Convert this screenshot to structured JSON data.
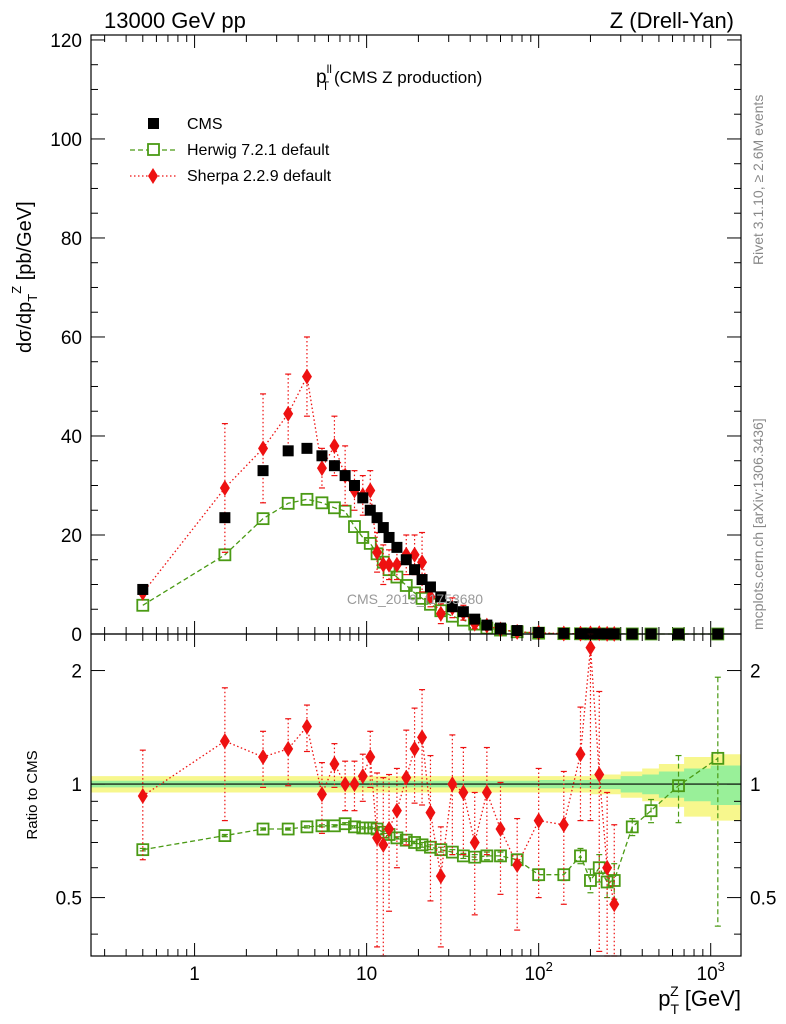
{
  "header": {
    "left": "13000 GeV pp",
    "right": "Z (Drell-Yan)"
  },
  "side_labels": {
    "rivet": "Rivet 3.1.10, ≥ 2.6M events",
    "mcplots": "mcplots.cern.ch [arXiv:1306.3436]"
  },
  "watermark": "CMS_2019_I1753680",
  "chart_data": [
    {
      "type": "scatter",
      "panel": "main",
      "title": "p_T^ll (CMS Z production)",
      "title_main": "p",
      "title_sup": "ll",
      "title_sub": "T",
      "title_rest": " (CMS Z production)",
      "ylabel": "dσ/dp_T^Z [pb/GeV]",
      "xscale": "log",
      "xlim": [
        0.25,
        1500
      ],
      "ylim": [
        0,
        121
      ],
      "yticks": [
        0,
        20,
        40,
        60,
        80,
        100,
        120
      ],
      "legend_placement": "top-left",
      "series": [
        {
          "name": "CMS",
          "color": "#000000",
          "marker": "filled-square",
          "x": [
            0.5,
            1.5,
            2.5,
            3.5,
            4.5,
            5.5,
            6.5,
            7.5,
            8.5,
            9.5,
            10.5,
            11.5,
            12.5,
            13.5,
            15,
            17,
            19,
            21,
            23.5,
            27,
            31.5,
            36.5,
            42.5,
            50,
            60,
            75,
            100,
            140,
            175,
            200,
            225,
            250,
            275,
            350,
            450,
            650,
            1100
          ],
          "y": [
            9,
            23.5,
            33,
            37,
            37.5,
            36,
            34,
            32,
            30,
            27.5,
            25,
            23.5,
            21.5,
            19.5,
            17.5,
            15,
            13,
            11,
            9.5,
            7.5,
            5.5,
            4.5,
            3,
            1.8,
            1.2,
            0.7,
            0.3,
            0.12,
            0.07,
            0.05,
            0.04,
            0.03,
            0.025,
            0.015,
            0.008,
            0.003,
            0.0005
          ]
        },
        {
          "name": "Herwig 7.2.1 default",
          "color": "#4a9a14",
          "marker": "open-square",
          "line": "dashed",
          "x": [
            0.5,
            1.5,
            2.5,
            3.5,
            4.5,
            5.5,
            6.5,
            7.5,
            8.5,
            9.5,
            10.5,
            11.5,
            12.5,
            13.5,
            15,
            17,
            19,
            21,
            23.5,
            27,
            31.5,
            36.5,
            42.5,
            50,
            60,
            75,
            100,
            140,
            175,
            200,
            225,
            250,
            275,
            350,
            450,
            650,
            1100
          ],
          "y": [
            5.8,
            16,
            23.3,
            26.4,
            27.2,
            26.5,
            25.5,
            24.8,
            21.7,
            19.5,
            18.3,
            16.2,
            14.5,
            13,
            11.5,
            9.8,
            8.3,
            7.2,
            6,
            4.7,
            3.6,
            2.8,
            2,
            1.2,
            0.8,
            0.45,
            0.17,
            0.07,
            0.045,
            0.03,
            0.025,
            0.018,
            0.014,
            0.011,
            0.006,
            0.003,
            0.0006
          ]
        },
        {
          "name": "Sherpa 2.2.9 default",
          "color": "#ee1111",
          "marker": "filled-diamond",
          "line": "dotted",
          "x": [
            0.5,
            1.5,
            2.5,
            3.5,
            4.5,
            5.5,
            6.5,
            7.5,
            8.5,
            9.5,
            10.5,
            11.5,
            12.5,
            13.5,
            15,
            17,
            19,
            21,
            23.5,
            27,
            31.5,
            36.5,
            42.5,
            50,
            60,
            75,
            100,
            140,
            175,
            200,
            225,
            250,
            275
          ],
          "y": [
            8.3,
            29.5,
            37.5,
            44.5,
            52,
            33.5,
            38,
            32,
            29,
            28,
            29,
            16.5,
            14,
            14,
            14,
            16,
            16,
            14.5,
            7.5,
            4.1,
            5.3,
            4.3,
            2.1,
            1.7,
            0.9,
            0.42,
            0.24,
            0.09,
            0.08,
            0.12,
            0.14,
            0.03,
            0.03
          ],
          "yerr": [
            0.5,
            13,
            11,
            8,
            8,
            4,
            6,
            6,
            4,
            4,
            4,
            4,
            4,
            3,
            3,
            4,
            4,
            6,
            2,
            2,
            2,
            1.5,
            1,
            0.8,
            0.5,
            0.3,
            0.2,
            0.1,
            0.1,
            0.2,
            0.2,
            0.05,
            0.05
          ]
        }
      ]
    },
    {
      "type": "scatter",
      "panel": "ratio",
      "ylabel": "Ratio to CMS",
      "xlabel": "p_T^Z [GeV]",
      "xlabel_main": "p",
      "xlabel_sub": "T",
      "xlabel_sup": "Z",
      "xlabel_rest": " [GeV]",
      "xscale": "log",
      "yscale": "log",
      "xlim": [
        0.25,
        1500
      ],
      "ylim": [
        0.35,
        2.5
      ],
      "yticks": [
        0.5,
        1,
        2
      ],
      "xtick_labels": [
        "1",
        "10",
        "10²",
        "10³"
      ],
      "reference_line": 1,
      "band_colors": {
        "inner": "#99f099",
        "outer": "#f7f78d"
      },
      "band": {
        "x_edges": [
          0.25,
          1,
          10,
          100,
          200,
          300,
          400,
          500,
          700,
          1000,
          1500
        ],
        "inner_half": [
          0.02,
          0.02,
          0.02,
          0.025,
          0.03,
          0.05,
          0.06,
          0.08,
          0.1,
          0.12
        ],
        "outer_half": [
          0.05,
          0.05,
          0.05,
          0.05,
          0.06,
          0.08,
          0.1,
          0.13,
          0.18,
          0.2
        ]
      },
      "series": [
        {
          "name": "Herwig 7.2.1 default",
          "color": "#4a9a14",
          "marker": "open-square",
          "line": "dashed",
          "x": [
            0.5,
            1.5,
            2.5,
            3.5,
            4.5,
            5.5,
            6.5,
            7.5,
            8.5,
            9.5,
            10.5,
            11.5,
            12.5,
            13.5,
            15,
            17,
            19,
            21,
            23.5,
            27,
            31.5,
            36.5,
            42.5,
            50,
            60,
            75,
            100,
            140,
            175,
            200,
            225,
            250,
            275,
            350,
            450,
            650,
            1100
          ],
          "y": [
            0.67,
            0.73,
            0.76,
            0.76,
            0.77,
            0.775,
            0.775,
            0.785,
            0.77,
            0.765,
            0.765,
            0.76,
            0.745,
            0.735,
            0.72,
            0.71,
            0.7,
            0.69,
            0.68,
            0.67,
            0.66,
            0.645,
            0.64,
            0.645,
            0.645,
            0.63,
            0.575,
            0.575,
            0.645,
            0.555,
            0.6,
            0.55,
            0.555,
            0.77,
            0.85,
            0.99,
            1.17
          ],
          "yerr": [
            0.005,
            0.005,
            0.005,
            0.005,
            0.005,
            0.005,
            0.005,
            0.005,
            0.005,
            0.005,
            0.005,
            0.005,
            0.005,
            0.005,
            0.005,
            0.005,
            0.005,
            0.01,
            0.01,
            0.01,
            0.01,
            0.01,
            0.01,
            0.015,
            0.015,
            0.02,
            0.02,
            0.02,
            0.03,
            0.04,
            0.05,
            0.05,
            0.06,
            0.04,
            0.06,
            0.2,
            0.75
          ]
        },
        {
          "name": "Sherpa 2.2.9 default",
          "color": "#ee1111",
          "marker": "filled-diamond",
          "line": "dotted",
          "x": [
            0.5,
            1.5,
            2.5,
            3.5,
            4.5,
            5.5,
            6.5,
            7.5,
            8.5,
            9.5,
            10.5,
            11.5,
            12.5,
            13.5,
            15,
            17,
            19,
            21,
            23.5,
            27,
            31.5,
            36.5,
            42.5,
            50,
            60,
            75,
            100,
            140,
            175,
            200,
            225,
            250,
            275
          ],
          "y": [
            0.93,
            1.3,
            1.18,
            1.24,
            1.42,
            0.94,
            1.13,
            1.0,
            1.0,
            1.05,
            1.18,
            0.72,
            0.69,
            0.76,
            0.85,
            1.04,
            1.24,
            1.33,
            0.84,
            0.57,
            1.0,
            0.95,
            0.7,
            0.95,
            0.76,
            0.61,
            0.8,
            0.78,
            1.2,
            2.3,
            1.06,
            0.6,
            0.48
          ],
          "yerr": [
            0.3,
            0.5,
            0.2,
            0.25,
            0.2,
            0.2,
            0.15,
            0.15,
            0.15,
            0.15,
            0.2,
            0.35,
            0.35,
            0.3,
            0.25,
            0.35,
            0.35,
            0.45,
            0.35,
            0.2,
            0.35,
            0.3,
            0.25,
            0.3,
            0.25,
            0.2,
            0.3,
            0.3,
            0.4,
            1.5,
            0.7,
            0.35,
            0.3
          ]
        }
      ]
    }
  ]
}
